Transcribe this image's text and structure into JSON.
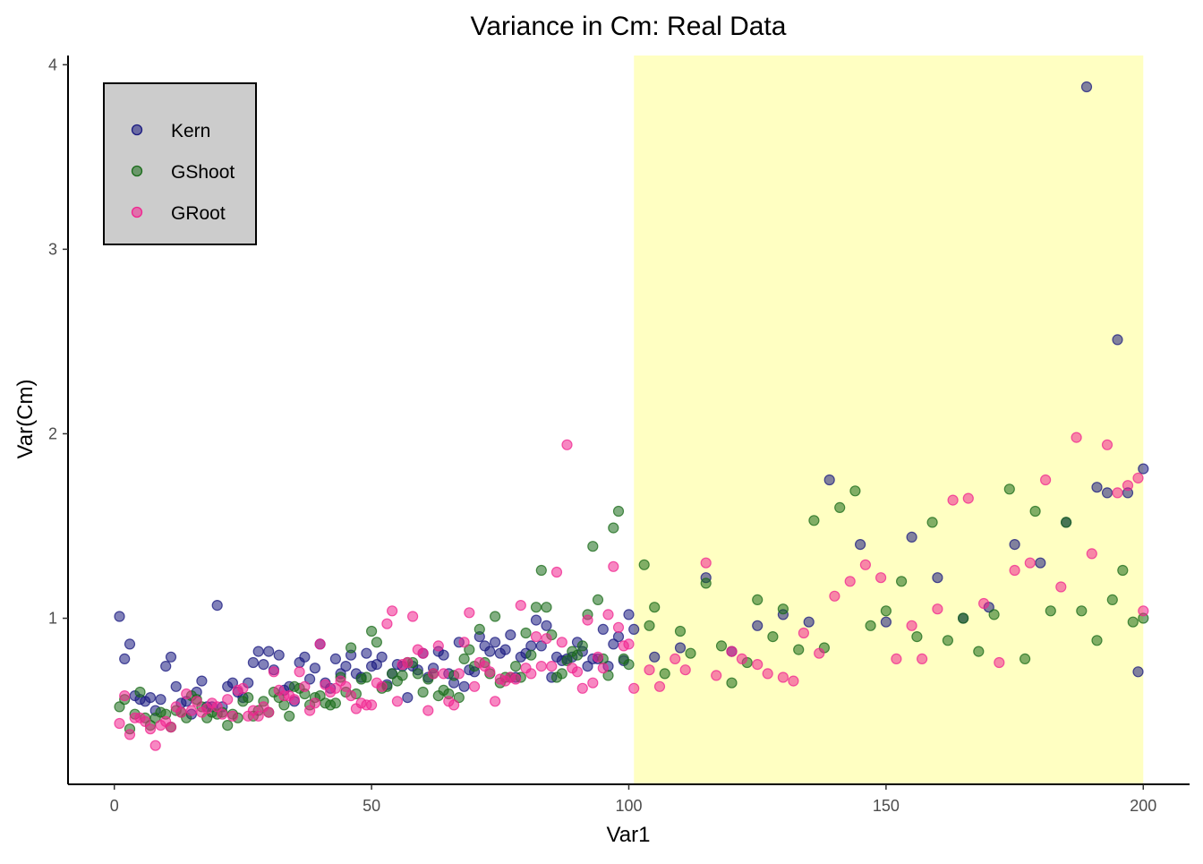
{
  "chart_data": {
    "type": "scatter",
    "title": "Variance in Cm: Real Data",
    "xlabel": "Var1",
    "ylabel": "Var(Cm)",
    "xlim": [
      -9,
      209
    ],
    "ylim": [
      0.1,
      4.05
    ],
    "x_ticks": [
      0,
      50,
      100,
      150,
      200
    ],
    "y_ticks": [
      1,
      2,
      3,
      4
    ],
    "grid": false,
    "legend_position": "top-left",
    "legend_fill": "#cccccc",
    "highlight_region": {
      "x_start": 101,
      "x_end": 200,
      "color": "#ffff99"
    },
    "series": [
      {
        "name": "Kern",
        "color": "#1a1a80",
        "x": [
          1,
          2,
          3,
          4,
          5,
          6,
          7,
          8,
          9,
          10,
          11,
          12,
          13,
          14,
          15,
          16,
          17,
          18,
          19,
          20,
          21,
          22,
          23,
          24,
          25,
          26,
          27,
          28,
          29,
          30,
          31,
          32,
          33,
          34,
          35,
          36,
          37,
          38,
          39,
          40,
          41,
          42,
          43,
          44,
          45,
          46,
          47,
          48,
          49,
          50,
          51,
          52,
          53,
          54,
          55,
          56,
          57,
          58,
          59,
          60,
          61,
          62,
          63,
          64,
          65,
          66,
          67,
          68,
          69,
          70,
          71,
          72,
          73,
          74,
          75,
          76,
          77,
          78,
          79,
          80,
          81,
          82,
          83,
          84,
          85,
          86,
          87,
          88,
          89,
          90,
          91,
          92,
          93,
          94,
          95,
          96,
          97,
          98,
          99,
          100,
          101,
          105,
          110,
          115,
          120,
          125,
          130,
          135,
          139,
          145,
          150,
          155,
          160,
          165,
          170,
          175,
          180,
          185,
          189,
          191,
          193,
          195,
          197,
          199,
          200
        ],
        "y": [
          1.01,
          0.78,
          0.86,
          0.58,
          0.56,
          0.55,
          0.57,
          0.5,
          0.56,
          0.74,
          0.79,
          0.63,
          0.54,
          0.55,
          0.48,
          0.6,
          0.66,
          0.52,
          0.52,
          1.07,
          0.52,
          0.63,
          0.65,
          0.6,
          0.57,
          0.65,
          0.76,
          0.82,
          0.75,
          0.82,
          0.72,
          0.8,
          0.61,
          0.63,
          0.55,
          0.76,
          0.79,
          0.67,
          0.73,
          0.86,
          0.65,
          0.62,
          0.78,
          0.7,
          0.74,
          0.8,
          0.7,
          0.68,
          0.81,
          0.74,
          0.75,
          0.79,
          0.64,
          0.7,
          0.75,
          0.74,
          0.57,
          0.74,
          0.72,
          0.81,
          0.68,
          0.73,
          0.82,
          0.8,
          0.7,
          0.65,
          0.87,
          0.63,
          0.72,
          0.71,
          0.9,
          0.85,
          0.82,
          0.87,
          0.81,
          0.83,
          0.91,
          0.68,
          0.79,
          0.81,
          0.85,
          0.99,
          0.85,
          0.96,
          0.68,
          0.79,
          0.77,
          0.78,
          0.79,
          0.87,
          0.82,
          0.74,
          0.78,
          0.78,
          0.94,
          0.74,
          0.86,
          0.9,
          0.77,
          1.02,
          0.94,
          0.79,
          0.84,
          1.22,
          0.82,
          0.96,
          1.02,
          0.98,
          1.75,
          1.4,
          0.98,
          1.44,
          1.22,
          1.0,
          1.06,
          1.4,
          1.3,
          1.52,
          3.88,
          1.71,
          1.68,
          2.51,
          1.68,
          0.71,
          1.81
        ]
      },
      {
        "name": "GShoot",
        "color": "#1a6b1a",
        "x": [
          1,
          2,
          3,
          4,
          5,
          6,
          7,
          8,
          9,
          10,
          11,
          12,
          13,
          14,
          15,
          16,
          17,
          18,
          19,
          20,
          21,
          22,
          23,
          24,
          25,
          26,
          27,
          28,
          29,
          30,
          31,
          32,
          33,
          34,
          35,
          36,
          37,
          38,
          39,
          40,
          41,
          42,
          43,
          44,
          45,
          46,
          47,
          48,
          49,
          50,
          51,
          52,
          53,
          54,
          55,
          56,
          57,
          58,
          59,
          60,
          61,
          62,
          63,
          64,
          65,
          66,
          67,
          68,
          69,
          70,
          71,
          72,
          73,
          74,
          75,
          76,
          77,
          78,
          79,
          80,
          81,
          82,
          83,
          84,
          85,
          86,
          87,
          88,
          89,
          90,
          91,
          92,
          93,
          94,
          95,
          96,
          97,
          98,
          99,
          100,
          103,
          104,
          105,
          107,
          110,
          112,
          115,
          118,
          120,
          123,
          125,
          128,
          130,
          133,
          136,
          138,
          141,
          144,
          147,
          150,
          153,
          156,
          159,
          162,
          165,
          168,
          171,
          174,
          177,
          179,
          182,
          185,
          188,
          191,
          194,
          196,
          198,
          200
        ],
        "y": [
          0.52,
          0.56,
          0.4,
          0.48,
          0.6,
          0.46,
          0.42,
          0.46,
          0.49,
          0.48,
          0.41,
          0.5,
          0.49,
          0.46,
          0.58,
          0.56,
          0.52,
          0.46,
          0.49,
          0.48,
          0.49,
          0.42,
          0.48,
          0.46,
          0.55,
          0.57,
          0.47,
          0.5,
          0.55,
          0.49,
          0.6,
          0.57,
          0.53,
          0.47,
          0.63,
          0.62,
          0.59,
          0.53,
          0.57,
          0.58,
          0.54,
          0.53,
          0.54,
          0.68,
          0.6,
          0.84,
          0.59,
          0.67,
          0.68,
          0.93,
          0.87,
          0.62,
          0.63,
          0.7,
          0.66,
          0.69,
          0.76,
          0.76,
          0.7,
          0.6,
          0.67,
          0.7,
          0.58,
          0.61,
          0.59,
          0.69,
          0.57,
          0.78,
          0.83,
          0.74,
          0.94,
          0.76,
          0.7,
          1.01,
          0.65,
          0.68,
          0.68,
          0.74,
          0.68,
          0.92,
          0.8,
          1.06,
          1.26,
          1.06,
          0.91,
          0.68,
          0.7,
          0.77,
          0.82,
          0.8,
          0.85,
          1.02,
          1.39,
          1.1,
          0.78,
          0.69,
          1.49,
          1.58,
          0.78,
          0.75,
          1.29,
          0.96,
          1.06,
          0.7,
          0.93,
          0.81,
          1.19,
          0.85,
          0.65,
          0.76,
          1.1,
          0.9,
          1.05,
          0.83,
          1.53,
          0.84,
          1.6,
          1.69,
          0.96,
          1.04,
          1.2,
          0.9,
          1.52,
          0.88,
          1.0,
          0.82,
          1.02,
          1.7,
          0.78,
          1.58,
          1.04,
          1.52,
          1.04,
          0.88,
          1.1,
          1.26,
          0.98,
          1.0
        ]
      },
      {
        "name": "GRoot",
        "color": "#f0248f",
        "x": [
          1,
          2,
          3,
          4,
          5,
          6,
          7,
          8,
          9,
          10,
          11,
          12,
          13,
          14,
          15,
          16,
          17,
          18,
          19,
          20,
          21,
          22,
          23,
          24,
          25,
          26,
          27,
          28,
          29,
          30,
          31,
          32,
          33,
          34,
          35,
          36,
          37,
          38,
          39,
          40,
          41,
          42,
          43,
          44,
          45,
          46,
          47,
          48,
          49,
          50,
          51,
          52,
          53,
          54,
          55,
          56,
          57,
          58,
          59,
          60,
          61,
          62,
          63,
          64,
          65,
          66,
          67,
          68,
          69,
          70,
          71,
          72,
          73,
          74,
          75,
          76,
          77,
          78,
          79,
          80,
          81,
          82,
          83,
          84,
          85,
          86,
          87,
          88,
          89,
          90,
          91,
          92,
          93,
          94,
          95,
          96,
          97,
          98,
          99,
          100,
          101,
          104,
          106,
          109,
          111,
          115,
          117,
          120,
          122,
          125,
          127,
          130,
          132,
          134,
          137,
          140,
          143,
          146,
          149,
          152,
          155,
          157,
          160,
          163,
          166,
          169,
          172,
          175,
          178,
          181,
          184,
          187,
          190,
          193,
          195,
          197,
          199,
          200
        ],
        "y": [
          0.43,
          0.58,
          0.37,
          0.46,
          0.46,
          0.44,
          0.4,
          0.31,
          0.42,
          0.44,
          0.41,
          0.52,
          0.49,
          0.59,
          0.5,
          0.55,
          0.49,
          0.51,
          0.54,
          0.52,
          0.48,
          0.56,
          0.47,
          0.61,
          0.62,
          0.47,
          0.5,
          0.47,
          0.52,
          0.49,
          0.71,
          0.61,
          0.58,
          0.58,
          0.56,
          0.71,
          0.63,
          0.5,
          0.54,
          0.86,
          0.64,
          0.6,
          0.62,
          0.66,
          0.63,
          0.58,
          0.51,
          0.54,
          0.53,
          0.53,
          0.65,
          0.63,
          0.97,
          1.04,
          0.55,
          0.75,
          0.76,
          1.01,
          0.83,
          0.81,
          0.5,
          0.7,
          0.85,
          0.7,
          0.55,
          0.53,
          0.7,
          0.87,
          1.03,
          0.63,
          0.76,
          0.74,
          0.71,
          0.55,
          0.67,
          0.66,
          0.68,
          0.67,
          1.07,
          0.73,
          0.7,
          0.9,
          0.74,
          0.89,
          0.74,
          1.25,
          0.87,
          1.94,
          0.73,
          0.71,
          0.62,
          0.99,
          0.65,
          0.79,
          0.73,
          1.02,
          1.28,
          0.95,
          0.85,
          0.86,
          0.62,
          0.72,
          0.63,
          0.78,
          0.72,
          1.3,
          0.69,
          0.82,
          0.78,
          0.75,
          0.7,
          0.68,
          0.66,
          0.92,
          0.81,
          1.12,
          1.2,
          1.29,
          1.22,
          0.78,
          0.96,
          0.78,
          1.05,
          1.64,
          1.65,
          1.08,
          0.76,
          1.26,
          1.3,
          1.75,
          1.17,
          1.98,
          1.35,
          1.94,
          1.68,
          1.72,
          1.76,
          1.04
        ]
      }
    ]
  }
}
